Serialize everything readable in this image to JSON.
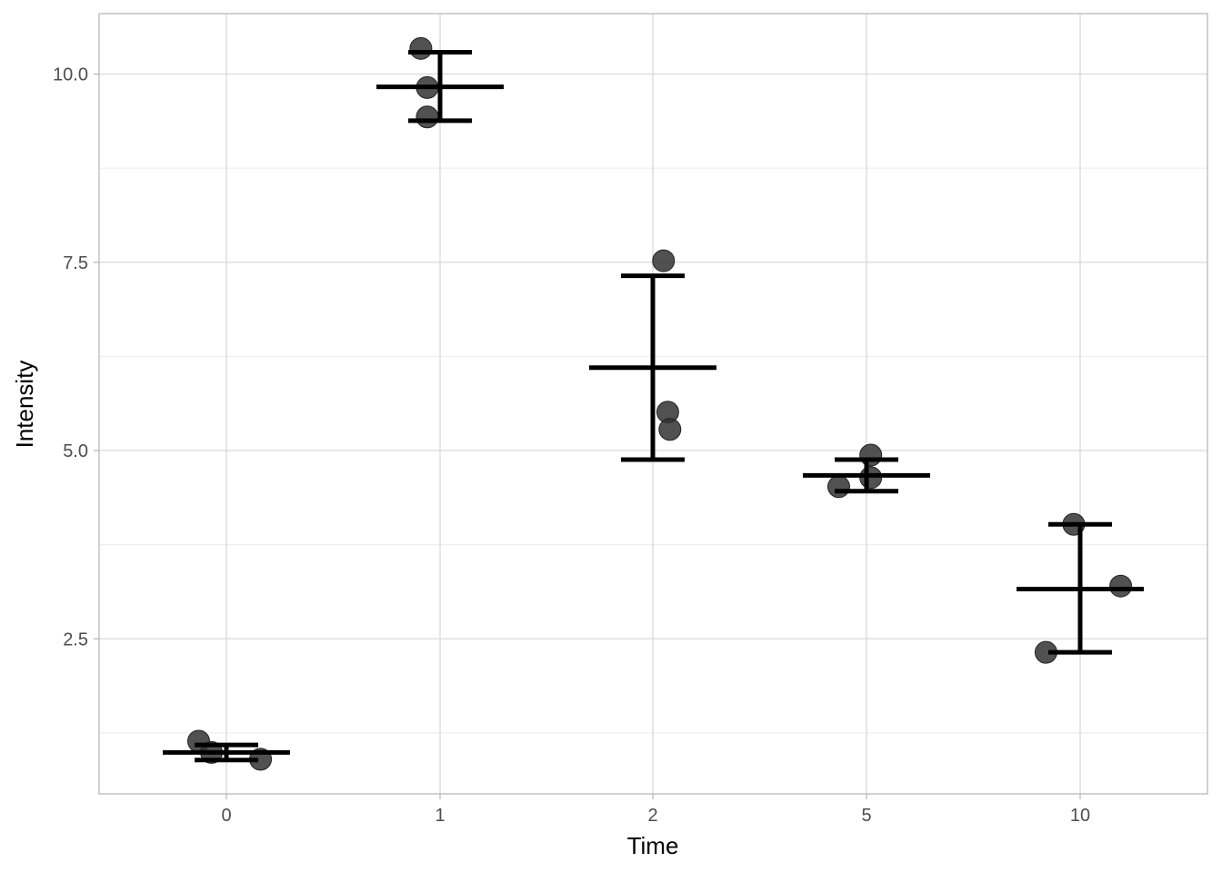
{
  "chart_data": {
    "type": "scatter",
    "title": "",
    "xlabel": "Time",
    "ylabel": "Intensity",
    "categories": [
      "0",
      "1",
      "2",
      "5",
      "10"
    ],
    "ylim": [
      0.4,
      10.8
    ],
    "yticks": [
      2.5,
      5.0,
      7.5,
      10.0
    ],
    "ytick_labels": [
      "2.5",
      "5.0",
      "7.5",
      "10.0"
    ],
    "grid": true,
    "legend": null,
    "points": [
      {
        "category": "0",
        "x_offset": -0.13,
        "y": 1.14
      },
      {
        "category": "0",
        "x_offset": -0.07,
        "y": 0.99
      },
      {
        "category": "0",
        "x_offset": 0.16,
        "y": 0.9
      },
      {
        "category": "1",
        "x_offset": -0.09,
        "y": 10.34
      },
      {
        "category": "1",
        "x_offset": -0.06,
        "y": 9.82
      },
      {
        "category": "1",
        "x_offset": -0.06,
        "y": 9.43
      },
      {
        "category": "2",
        "x_offset": 0.05,
        "y": 7.52
      },
      {
        "category": "2",
        "x_offset": 0.07,
        "y": 5.51
      },
      {
        "category": "2",
        "x_offset": 0.08,
        "y": 5.28
      },
      {
        "category": "5",
        "x_offset": 0.02,
        "y": 4.94
      },
      {
        "category": "5",
        "x_offset": 0.02,
        "y": 4.64
      },
      {
        "category": "5",
        "x_offset": -0.13,
        "y": 4.52
      },
      {
        "category": "10",
        "x_offset": -0.03,
        "y": 4.02
      },
      {
        "category": "10",
        "x_offset": 0.19,
        "y": 3.2
      },
      {
        "category": "10",
        "x_offset": -0.16,
        "y": 2.32
      }
    ],
    "summary": [
      {
        "category": "0",
        "mean": 0.99,
        "lower": 0.89,
        "upper": 1.09
      },
      {
        "category": "1",
        "mean": 9.83,
        "lower": 9.38,
        "upper": 10.29
      },
      {
        "category": "2",
        "mean": 6.1,
        "lower": 4.88,
        "upper": 7.32
      },
      {
        "category": "5",
        "mean": 4.67,
        "lower": 4.46,
        "upper": 4.88
      },
      {
        "category": "10",
        "mean": 3.16,
        "lower": 2.32,
        "upper": 4.02
      }
    ],
    "point_color": "#333333",
    "point_alpha": 0.85,
    "bar_color": "#000000"
  }
}
